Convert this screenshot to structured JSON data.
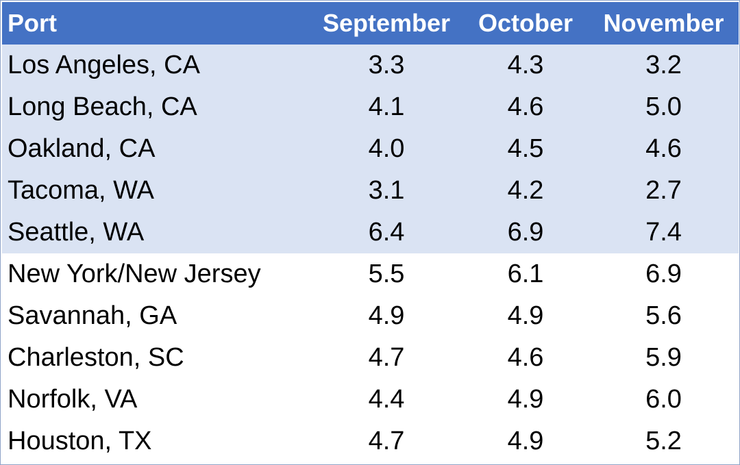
{
  "table": {
    "header": [
      "Port",
      "September",
      "October",
      "November"
    ],
    "rows": [
      [
        "Los Angeles, CA",
        "3.3",
        "4.3",
        "3.2"
      ],
      [
        "Long Beach, CA",
        "4.1",
        "4.6",
        "5.0"
      ],
      [
        "Oakland, CA",
        "4.0",
        "4.5",
        "4.6"
      ],
      [
        "Tacoma, WA",
        "3.1",
        "4.2",
        "2.7"
      ],
      [
        "Seattle, WA",
        "6.4",
        "6.9",
        "7.4"
      ],
      [
        "New York/New Jersey",
        "5.5",
        "6.1",
        "6.9"
      ],
      [
        "Savannah, GA",
        "4.9",
        "4.9",
        "5.6"
      ],
      [
        "Charleston, SC",
        "4.7",
        "4.6",
        "5.9"
      ],
      [
        "Norfolk, VA",
        "4.4",
        "4.9",
        "6.0"
      ],
      [
        "Houston, TX",
        "4.7",
        "4.9",
        "5.2"
      ]
    ]
  }
}
